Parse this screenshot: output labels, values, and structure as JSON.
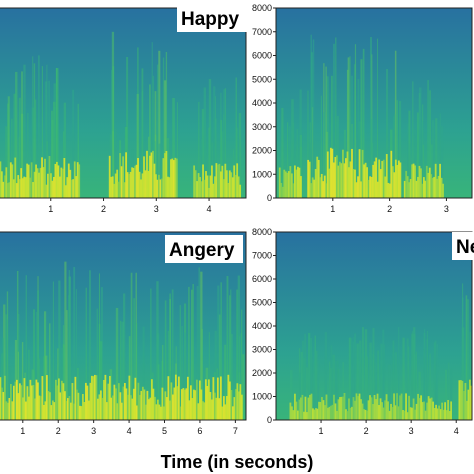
{
  "chart_data": {
    "xlabel": "Time (in seconds)",
    "panels": [
      {
        "type": "heatmap",
        "label": "Happy",
        "xticks": [
          "1",
          "2",
          "3",
          "4"
        ],
        "xlim": [
          0,
          4.7
        ],
        "yticks": [],
        "ylim": [
          0,
          8000
        ],
        "colormap": [
          "#2b4fa0",
          "#2596a0",
          "#3dbb70",
          "#d6e82a",
          "#fde725"
        ],
        "bursts": [
          {
            "t0": 0.0,
            "t1": 1.55,
            "energy": 0.75
          },
          {
            "t0": 2.1,
            "t1": 3.4,
            "energy": 0.9
          },
          {
            "t0": 3.7,
            "t1": 4.6,
            "energy": 0.55
          }
        ]
      },
      {
        "type": "heatmap",
        "label": "",
        "xticks": [
          "1",
          "2",
          "3"
        ],
        "xlim": [
          0,
          3.45
        ],
        "yticks": [
          "0",
          "1000",
          "2000",
          "3000",
          "4000",
          "5000",
          "6000",
          "7000",
          "8000"
        ],
        "ylim": [
          0,
          8000
        ],
        "colormap": [
          "#2b4fa0",
          "#2596a0",
          "#3dbb70",
          "#d6e82a",
          "#fde725"
        ],
        "bursts": [
          {
            "t0": 0.05,
            "t1": 0.45,
            "energy": 0.5
          },
          {
            "t0": 0.55,
            "t1": 2.2,
            "energy": 0.95
          },
          {
            "t0": 2.25,
            "t1": 2.95,
            "energy": 0.55
          }
        ]
      },
      {
        "type": "heatmap",
        "label": "Angery",
        "xticks": [
          "1",
          "2",
          "3",
          "4",
          "5",
          "6",
          "7"
        ],
        "xlim": [
          0.3,
          7.3
        ],
        "yticks": [],
        "ylim": [
          0,
          8000
        ],
        "colormap": [
          "#2b4fa0",
          "#2596a0",
          "#3dbb70",
          "#d6e82a",
          "#fde725"
        ],
        "bursts": [
          {
            "t0": 0.3,
            "t1": 7.2,
            "energy": 0.85
          }
        ]
      },
      {
        "type": "heatmap",
        "label": "Ne",
        "xticks": [
          "1",
          "2",
          "3",
          "4"
        ],
        "xlim": [
          0,
          4.35
        ],
        "yticks": [
          "0",
          "1000",
          "2000",
          "3000",
          "4000",
          "5000",
          "6000",
          "7000",
          "8000"
        ],
        "ylim": [
          0,
          8000
        ],
        "colormap": [
          "#2b4fa0",
          "#2596a0",
          "#3dbb70",
          "#d6e82a",
          "#fde725"
        ],
        "bursts": [
          {
            "t0": 0.3,
            "t1": 3.9,
            "energy": 0.35
          },
          {
            "t0": 4.05,
            "t1": 4.35,
            "energy": 0.7
          }
        ]
      }
    ]
  }
}
